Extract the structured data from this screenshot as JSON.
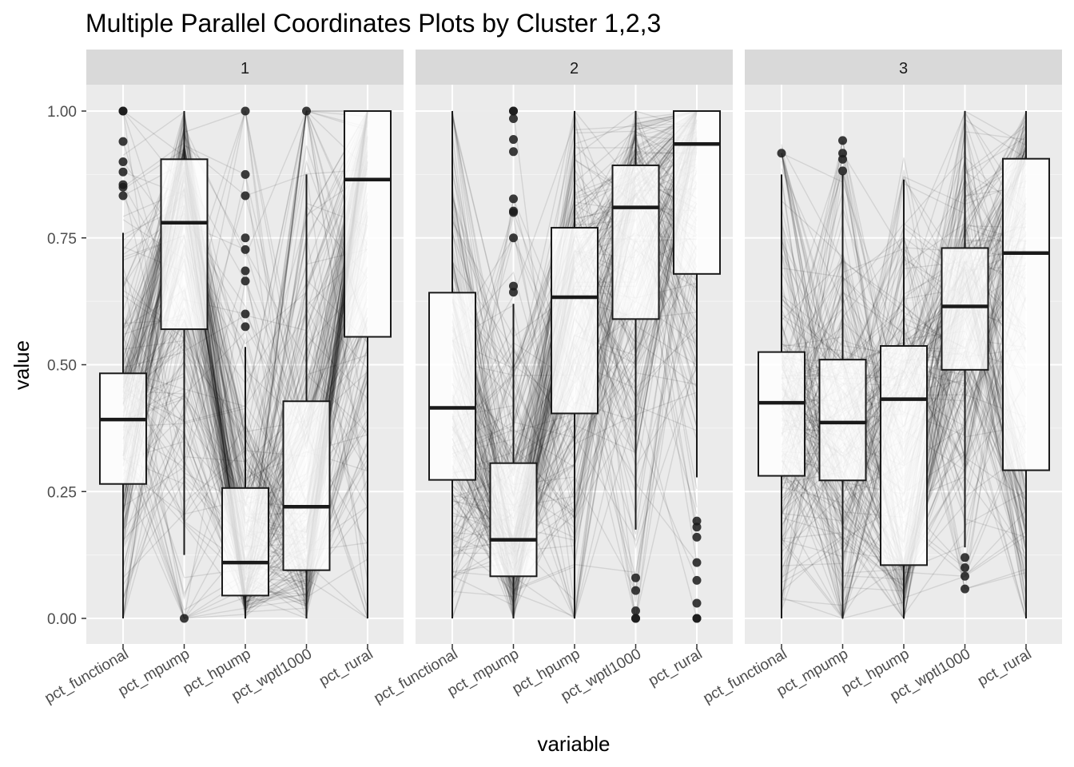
{
  "chart_data": {
    "type": "boxplot-parallel-coordinates",
    "title": "Multiple Parallel Coordinates Plots by Cluster 1,2,3",
    "xlabel": "variable",
    "ylabel": "value",
    "ylim": [
      -0.05,
      1.1
    ],
    "yticks": [
      "0.00",
      "0.25",
      "0.50",
      "0.75",
      "1.00"
    ],
    "categories": [
      "pct_functional",
      "pct_mpump",
      "pct_hpump",
      "pct_wptl1000",
      "pct_rural"
    ],
    "grid": true,
    "colors": {
      "panel_bg": "#ebebeb",
      "strip_bg": "#d9d9d9",
      "grid": "#ffffff",
      "line": "#000000",
      "box_fill": "#ffffff"
    },
    "panels": [
      {
        "label": "1",
        "boxes": [
          {
            "variable": "pct_functional",
            "ymin": 0.0,
            "q1": 0.265,
            "median": 0.392,
            "q3": 0.483,
            "ymax": 0.76,
            "outliers": [
              0.833,
              0.85,
              0.855,
              0.88,
              0.9,
              0.94,
              1.0,
              1.0
            ]
          },
          {
            "variable": "pct_mpump",
            "ymin": 0.125,
            "q1": 0.57,
            "median": 0.78,
            "q3": 0.905,
            "ymax": 1.0,
            "outliers": [
              0.0
            ]
          },
          {
            "variable": "pct_hpump",
            "ymin": 0.0,
            "q1": 0.045,
            "median": 0.11,
            "q3": 0.257,
            "ymax": 0.535,
            "outliers": [
              0.575,
              0.6,
              0.665,
              0.685,
              0.727,
              0.75,
              0.833,
              0.875,
              1.0
            ]
          },
          {
            "variable": "pct_wptl1000",
            "ymin": 0.0,
            "q1": 0.095,
            "median": 0.22,
            "q3": 0.428,
            "ymax": 0.875,
            "outliers": [
              1.0
            ]
          },
          {
            "variable": "pct_rural",
            "ymin": 0.0,
            "q1": 0.555,
            "median": 0.865,
            "q3": 1.0,
            "ymax": 1.0,
            "outliers": []
          }
        ]
      },
      {
        "label": "2",
        "boxes": [
          {
            "variable": "pct_functional",
            "ymin": 0.0,
            "q1": 0.273,
            "median": 0.415,
            "q3": 0.642,
            "ymax": 1.0,
            "outliers": []
          },
          {
            "variable": "pct_mpump",
            "ymin": 0.0,
            "q1": 0.083,
            "median": 0.155,
            "q3": 0.306,
            "ymax": 0.62,
            "outliers": [
              0.643,
              0.655,
              0.75,
              0.8,
              0.803,
              0.827,
              0.92,
              0.944,
              0.985,
              1.0,
              1.0
            ]
          },
          {
            "variable": "pct_hpump",
            "ymin": 0.0,
            "q1": 0.404,
            "median": 0.633,
            "q3": 0.77,
            "ymax": 1.0,
            "outliers": []
          },
          {
            "variable": "pct_wptl1000",
            "ymin": 0.175,
            "q1": 0.59,
            "median": 0.81,
            "q3": 0.893,
            "ymax": 1.0,
            "outliers": [
              0.0,
              0.0,
              0.015,
              0.055,
              0.08
            ]
          },
          {
            "variable": "pct_rural",
            "ymin": 0.278,
            "q1": 0.679,
            "median": 0.935,
            "q3": 1.0,
            "ymax": 1.0,
            "outliers": [
              0.0,
              0.0,
              0.03,
              0.075,
              0.11,
              0.16,
              0.18,
              0.192
            ]
          }
        ]
      },
      {
        "label": "3",
        "boxes": [
          {
            "variable": "pct_functional",
            "ymin": 0.0,
            "q1": 0.281,
            "median": 0.425,
            "q3": 0.525,
            "ymax": 0.875,
            "outliers": [
              0.917
            ]
          },
          {
            "variable": "pct_mpump",
            "ymin": 0.0,
            "q1": 0.272,
            "median": 0.386,
            "q3": 0.51,
            "ymax": 0.875,
            "outliers": [
              0.882,
              0.905,
              0.917,
              0.942
            ]
          },
          {
            "variable": "pct_hpump",
            "ymin": 0.0,
            "q1": 0.105,
            "median": 0.432,
            "q3": 0.537,
            "ymax": 0.865,
            "outliers": []
          },
          {
            "variable": "pct_wptl1000",
            "ymin": 0.14,
            "q1": 0.49,
            "median": 0.615,
            "q3": 0.73,
            "ymax": 1.0,
            "outliers": [
              0.058,
              0.083,
              0.1,
              0.12
            ]
          },
          {
            "variable": "pct_rural",
            "ymin": 0.0,
            "q1": 0.292,
            "median": 0.72,
            "q3": 0.906,
            "ymax": 1.0,
            "outliers": []
          }
        ]
      }
    ]
  }
}
